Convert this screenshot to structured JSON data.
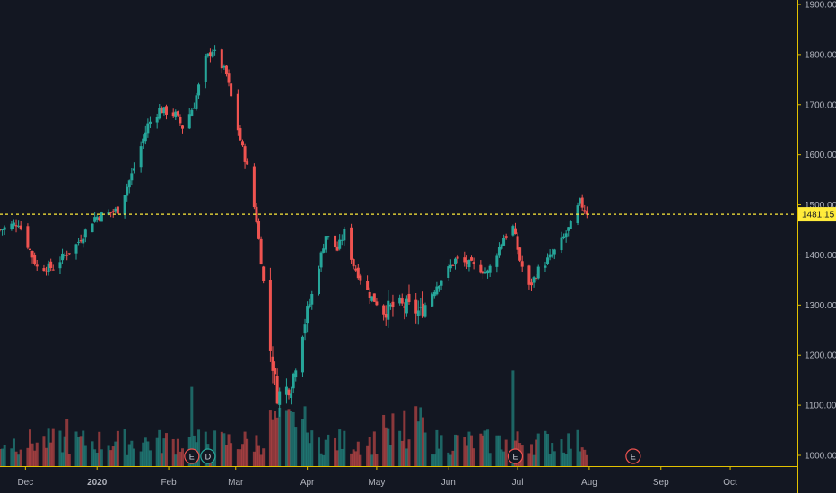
{
  "chart_data": {
    "type": "candlestick",
    "colors": {
      "up": "#26a69a",
      "down": "#ef5350",
      "up_volume": "#26a69a",
      "down_volume": "#ef5350",
      "background": "#131722",
      "axis_line": "#e3c200",
      "price_line": "#ffeb3b",
      "tick_text": "#b2b5be"
    },
    "y_axis": {
      "side": "right",
      "ylim": [
        975,
        1900
      ],
      "ticks": [
        "1000.00",
        "1100.00",
        "1200.00",
        "1300.00",
        "1400.00",
        "1500.00",
        "1600.00",
        "1700.00",
        "1800.00",
        "1900.00"
      ]
    },
    "x_axis": {
      "tick_labels": [
        {
          "label": "Dec",
          "date": "2019-12-01"
        },
        {
          "label": "2020",
          "date": "2020-01-01",
          "bold": true
        },
        {
          "label": "Feb",
          "date": "2020-02-01"
        },
        {
          "label": "Mar",
          "date": "2020-03-01"
        },
        {
          "label": "Apr",
          "date": "2020-04-01"
        },
        {
          "label": "May",
          "date": "2020-05-01"
        },
        {
          "label": "Jun",
          "date": "2020-06-01"
        },
        {
          "label": "Jul",
          "date": "2020-07-01"
        },
        {
          "label": "Aug",
          "date": "2020-08-01"
        },
        {
          "label": "Sep",
          "date": "2020-09-01"
        },
        {
          "label": "Oct",
          "date": "2020-10-01"
        }
      ]
    },
    "last_price": {
      "value": 1481.15,
      "label": "1481.15"
    },
    "events": [
      {
        "letter": "E",
        "date": "2020-02-11",
        "color": "#ef5350"
      },
      {
        "letter": "D",
        "date": "2020-02-18",
        "color": "#26a69a"
      },
      {
        "letter": "E",
        "date": "2020-06-30",
        "color": "#ef5350"
      },
      {
        "letter": "E",
        "date": "2020-08-20",
        "color": "#ef5350"
      }
    ],
    "waypoints": [
      [
        "2019-11-20",
        1450
      ],
      [
        "2019-11-28",
        1465
      ],
      [
        "2019-12-06",
        1375
      ],
      [
        "2019-12-13",
        1375
      ],
      [
        "2019-12-18",
        1400
      ],
      [
        "2019-12-23",
        1420
      ],
      [
        "2019-12-31",
        1475
      ],
      [
        "2020-01-10",
        1490
      ],
      [
        "2020-01-16",
        1560
      ],
      [
        "2020-01-23",
        1660
      ],
      [
        "2020-01-28",
        1690
      ],
      [
        "2020-02-04",
        1680
      ],
      [
        "2020-02-07",
        1655
      ],
      [
        "2020-02-12",
        1700
      ],
      [
        "2020-02-17",
        1790
      ],
      [
        "2020-02-20",
        1810
      ],
      [
        "2020-02-26",
        1760
      ],
      [
        "2020-02-28",
        1715
      ],
      [
        "2020-03-03",
        1630
      ],
      [
        "2020-03-06",
        1575
      ],
      [
        "2020-03-10",
        1470
      ],
      [
        "2020-03-12",
        1390
      ],
      [
        "2020-03-16",
        1210
      ],
      [
        "2020-03-19",
        1120
      ],
      [
        "2020-03-25",
        1140
      ],
      [
        "2020-03-30",
        1250
      ],
      [
        "2020-04-03",
        1320
      ],
      [
        "2020-04-09",
        1440
      ],
      [
        "2020-04-14",
        1410
      ],
      [
        "2020-04-17",
        1445
      ],
      [
        "2020-04-21",
        1380
      ],
      [
        "2020-04-28",
        1320
      ],
      [
        "2020-05-04",
        1290
      ],
      [
        "2020-05-12",
        1300
      ],
      [
        "2020-05-20",
        1285
      ],
      [
        "2020-05-27",
        1340
      ],
      [
        "2020-06-04",
        1390
      ],
      [
        "2020-06-11",
        1380
      ],
      [
        "2020-06-18",
        1365
      ],
      [
        "2020-06-25",
        1435
      ],
      [
        "2020-06-29",
        1455
      ],
      [
        "2020-07-02",
        1390
      ],
      [
        "2020-07-06",
        1335
      ],
      [
        "2020-07-10",
        1370
      ],
      [
        "2020-07-16",
        1400
      ],
      [
        "2020-07-21",
        1435
      ],
      [
        "2020-07-24",
        1460
      ],
      [
        "2020-07-28",
        1505
      ],
      [
        "2020-07-31",
        1485
      ]
    ],
    "volume_spikes": [
      {
        "date": "2019-12-20",
        "value": 100
      },
      {
        "date": "2020-02-12",
        "value": 170
      },
      {
        "date": "2020-06-30",
        "value": 205
      }
    ]
  }
}
